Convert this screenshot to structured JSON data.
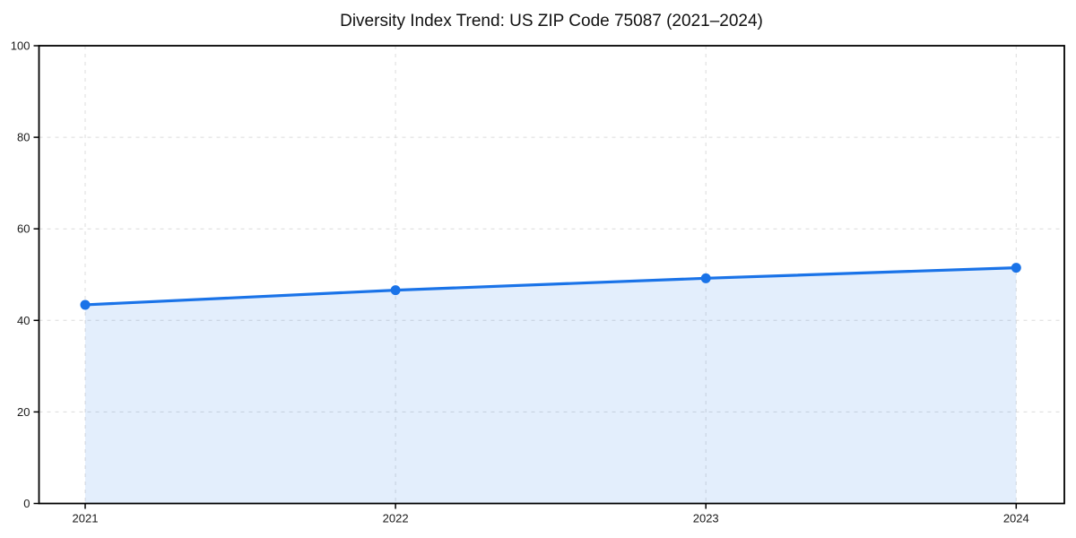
{
  "chart_data": {
    "type": "area",
    "title": "Diversity Index Trend: US ZIP Code 75087 (2021–2024)",
    "categories": [
      "2021",
      "2022",
      "2023",
      "2024"
    ],
    "series": [
      {
        "name": "Diversity Index",
        "values": [
          43.4,
          46.6,
          49.2,
          51.5
        ]
      }
    ],
    "xlabel": "",
    "ylabel": "",
    "ylim": [
      0,
      100
    ],
    "yticks": [
      0,
      20,
      40,
      60,
      80,
      100
    ],
    "grid": "dashed",
    "legend": "none",
    "marker": "circle",
    "colors": {
      "line": "#1a73e8",
      "marker": "#1a73e8",
      "fill": "rgba(26,115,232,0.12)",
      "grid": "#dcdcdc",
      "axis": "#000000",
      "tick_label": "#1a1a1a",
      "title": "#111111",
      "background": "#ffffff"
    }
  }
}
